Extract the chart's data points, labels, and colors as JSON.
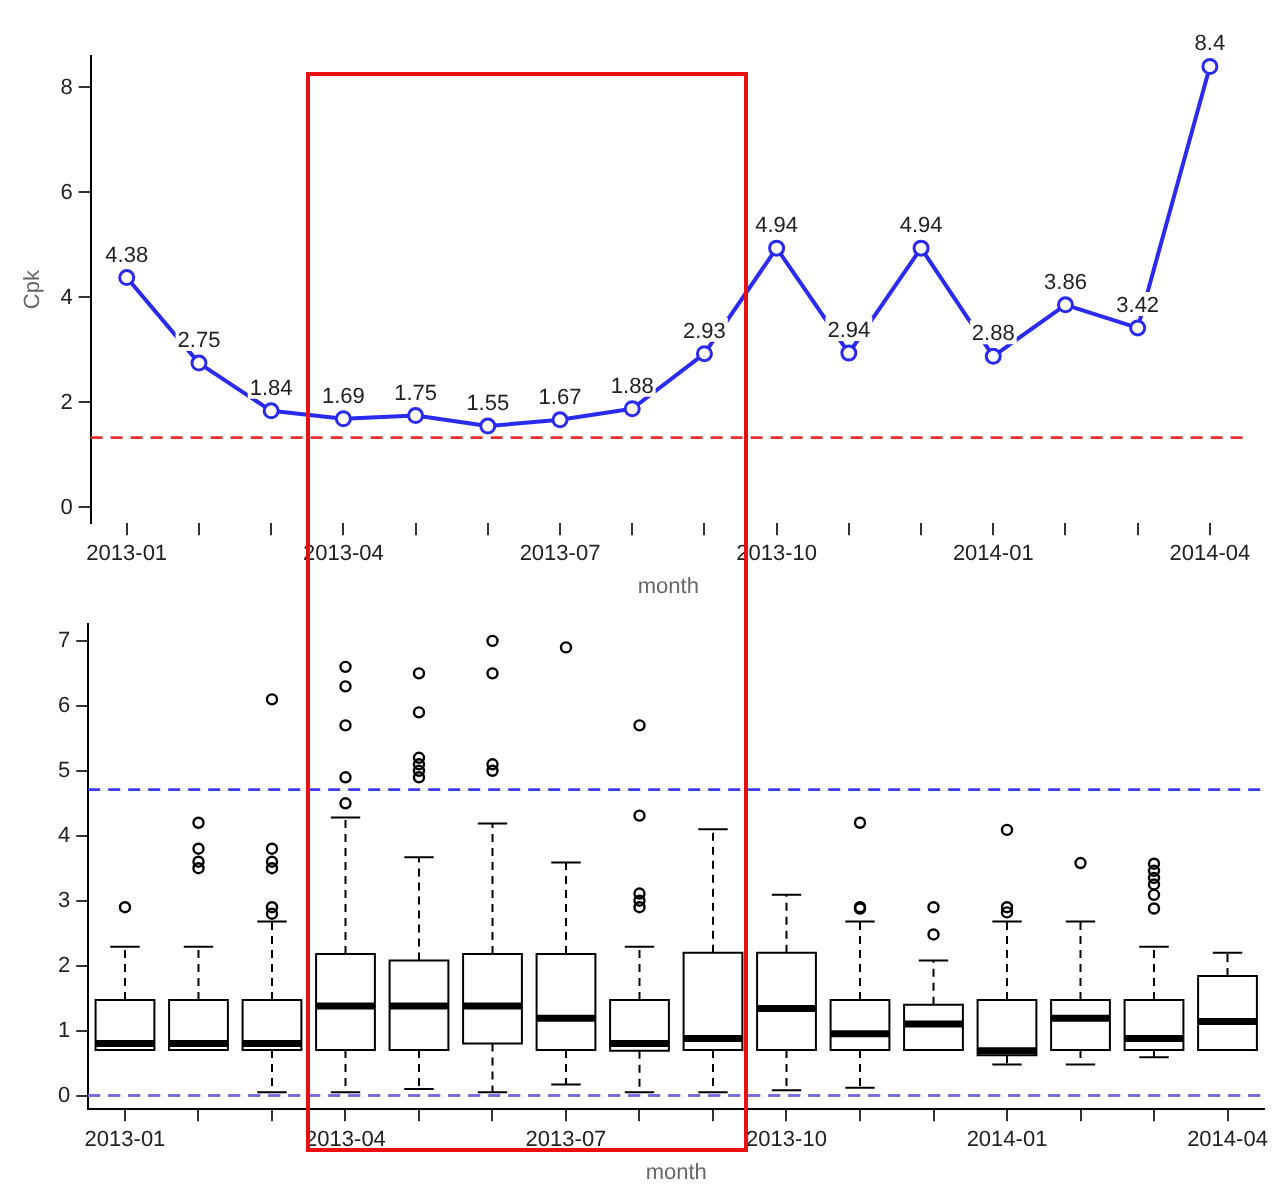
{
  "chart_data": [
    {
      "type": "line",
      "xlabel": "month",
      "ylabel": "Cpk",
      "categories": [
        "2013-01",
        null,
        null,
        "2013-04",
        null,
        null,
        "2013-07",
        null,
        null,
        "2013-10",
        null,
        null,
        "2014-01",
        null,
        null,
        "2014-04"
      ],
      "values": [
        4.38,
        2.75,
        1.84,
        1.69,
        1.75,
        1.55,
        1.67,
        1.88,
        2.93,
        4.94,
        2.94,
        4.94,
        2.88,
        3.86,
        3.42,
        8.4
      ],
      "color": "#2a2af0",
      "marker": "circle",
      "line_style": "solid",
      "data_labels": true,
      "ylim": [
        -0.3,
        8.6
      ],
      "yticks": [
        0,
        2,
        4,
        6,
        8
      ],
      "grid": false,
      "legend": false,
      "ref_lines": [
        {
          "axis": "y",
          "value": 1.33,
          "color": "#e83030",
          "line_style": "dashed"
        }
      ]
    },
    {
      "type": "box",
      "xlabel": "month",
      "categories": [
        "2013-01",
        null,
        null,
        "2013-04",
        null,
        null,
        "2013-07",
        null,
        null,
        "2013-10",
        null,
        null,
        "2014-01",
        null,
        null,
        "2014-04"
      ],
      "boxes": [
        {
          "low": 0.7,
          "q1": 0.7,
          "median": 0.8,
          "q3": 1.47,
          "high": 2.29,
          "outliers": [
            2.9
          ]
        },
        {
          "low": 0.7,
          "q1": 0.7,
          "median": 0.8,
          "q3": 1.47,
          "high": 2.29,
          "outliers": [
            4.2,
            3.8,
            3.6,
            3.5
          ]
        },
        {
          "low": 0.05,
          "q1": 0.7,
          "median": 0.8,
          "q3": 1.47,
          "high": 2.68,
          "outliers": [
            6.1,
            3.8,
            3.6,
            3.5,
            2.9,
            2.8
          ]
        },
        {
          "low": 0.05,
          "q1": 0.7,
          "median": 1.38,
          "q3": 2.18,
          "high": 4.28,
          "outliers": [
            6.6,
            6.3,
            5.7,
            4.9,
            4.5
          ]
        },
        {
          "low": 0.1,
          "q1": 0.7,
          "median": 1.38,
          "q3": 2.08,
          "high": 3.67,
          "outliers": [
            6.5,
            5.9,
            5.2,
            5.1,
            5.0,
            4.9
          ]
        },
        {
          "low": 0.05,
          "q1": 0.8,
          "median": 1.38,
          "q3": 2.18,
          "high": 4.19,
          "outliers": [
            7.0,
            6.5,
            5.1,
            5.0
          ]
        },
        {
          "low": 0.17,
          "q1": 0.7,
          "median": 1.19,
          "q3": 2.18,
          "high": 3.59,
          "outliers": [
            6.9
          ]
        },
        {
          "low": 0.05,
          "q1": 0.69,
          "median": 0.8,
          "q3": 1.47,
          "high": 2.29,
          "outliers": [
            5.7,
            4.31,
            3.11,
            3.0,
            2.9
          ]
        },
        {
          "low": 0.05,
          "q1": 0.7,
          "median": 0.88,
          "q3": 2.2,
          "high": 4.1
        },
        {
          "low": 0.08,
          "q1": 0.7,
          "median": 1.34,
          "q3": 2.2,
          "high": 3.09
        },
        {
          "low": 0.12,
          "q1": 0.7,
          "median": 0.95,
          "q3": 1.47,
          "high": 2.68,
          "outliers": [
            4.2,
            2.9,
            2.88
          ]
        },
        {
          "low": 0.7,
          "q1": 0.7,
          "median": 1.1,
          "q3": 1.4,
          "high": 2.08,
          "outliers": [
            2.9,
            2.48
          ]
        },
        {
          "low": 0.48,
          "q1": 0.62,
          "median": 0.69,
          "q3": 1.47,
          "high": 2.68,
          "outliers": [
            4.09,
            2.9,
            2.82
          ]
        },
        {
          "low": 0.48,
          "q1": 0.7,
          "median": 1.19,
          "q3": 1.47,
          "high": 2.68,
          "outliers": [
            3.58
          ]
        },
        {
          "low": 0.59,
          "q1": 0.7,
          "median": 0.88,
          "q3": 1.47,
          "high": 2.29,
          "outliers": [
            3.57,
            3.46,
            3.35,
            3.25,
            3.09,
            2.88
          ]
        },
        {
          "low": 0.7,
          "q1": 0.7,
          "median": 1.14,
          "q3": 1.84,
          "high": 2.2
        }
      ],
      "color": "#000000",
      "ylim": [
        -0.21,
        7.26
      ],
      "yticks": [
        0,
        1,
        2,
        3,
        4,
        5,
        6,
        7
      ],
      "grid": false,
      "legend": false,
      "ref_lines": [
        {
          "axis": "y",
          "value": 4.71,
          "color": "#3a3af0",
          "line_style": "dashed"
        },
        {
          "axis": "y",
          "value": 0,
          "color": "#f06060",
          "line_style": "dashed"
        },
        {
          "axis": "y",
          "value": 0,
          "color": "#6a6af0",
          "line_style": "dashed"
        }
      ]
    }
  ]
}
